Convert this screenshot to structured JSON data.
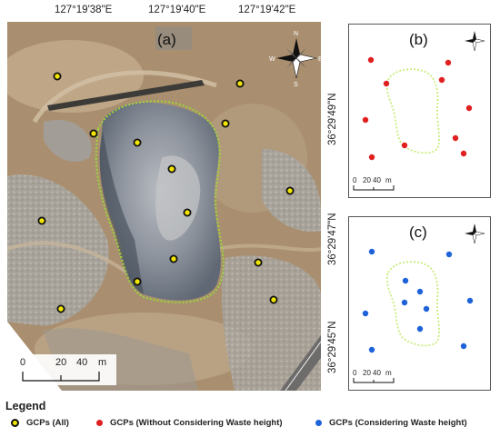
{
  "coords": {
    "top": [
      "127°19'38\"E",
      "127°19'40\"E",
      "127°19'42\"E"
    ],
    "right": [
      "36°29'49\"N",
      "36°29'47\"N",
      "36°29'45\"N"
    ]
  },
  "panels": {
    "a": {
      "label": "(a)",
      "scale": [
        "0",
        "20",
        "40",
        "m"
      ]
    },
    "b": {
      "label": "(b)",
      "scale": [
        "0",
        "20",
        "40",
        "m"
      ]
    },
    "c": {
      "label": "(c)",
      "scale": [
        "0",
        "20",
        "40",
        "m"
      ]
    }
  },
  "compass": {
    "icon": "north-arrow-icon",
    "letters": [
      "N",
      "S",
      "E",
      "W"
    ]
  },
  "legend": {
    "title": "Legend",
    "items": [
      {
        "label": "GCPs  (All)",
        "color": "#f2e600",
        "border": "#111111"
      },
      {
        "label": "GCPs  (Without Considering Waste height)",
        "color": "#e02020",
        "border": "#e02020"
      },
      {
        "label": "GCPs  (Considering Waste height)",
        "color": "#1f63d9",
        "border": "#1f63d9"
      }
    ]
  },
  "colors": {
    "boundary": "#9ad73a",
    "gcp_all": "#f2e600",
    "gcp_red": "#e02020",
    "gcp_blue": "#1f63d9"
  }
}
